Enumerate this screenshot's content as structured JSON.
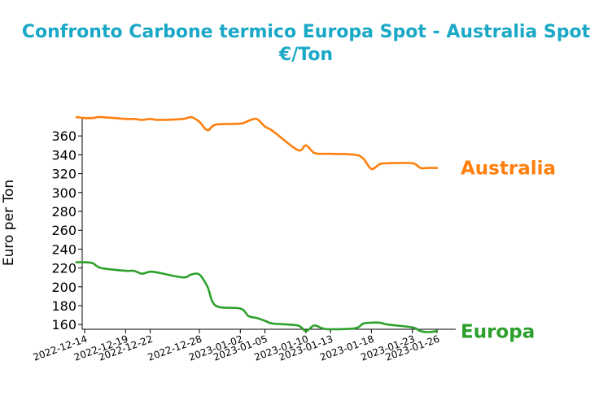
{
  "chart_data": {
    "type": "line",
    "title": [
      "Confronto Carbone termico Europa Spot - Australia Spot",
      "€/Ton"
    ],
    "xlabel": "",
    "ylabel": "Euro per Ton",
    "ylim": [
      155,
      380
    ],
    "yticks": [
      160,
      180,
      200,
      220,
      240,
      260,
      280,
      300,
      320,
      340,
      360
    ],
    "xlim": [
      "2022-12-14",
      "2023-01-27"
    ],
    "xticks": [
      "2022-12-14",
      "2022-12-19",
      "2022-12-22",
      "2022-12-28",
      "2023-01-02",
      "2023-01-05",
      "2023-01-10",
      "2023-01-13",
      "2023-01-18",
      "2023-01-23",
      "2023-01-26"
    ],
    "grid": false,
    "legend": "inline-right",
    "series": [
      {
        "name": "Australia",
        "color": "#ff7f0e",
        "points": [
          [
            "2022-12-13",
            380
          ],
          [
            "2022-12-14",
            379
          ],
          [
            "2022-12-15",
            379
          ],
          [
            "2022-12-16",
            380
          ],
          [
            "2022-12-19",
            378
          ],
          [
            "2022-12-20",
            378
          ],
          [
            "2022-12-21",
            377
          ],
          [
            "2022-12-22",
            378
          ],
          [
            "2022-12-23",
            377
          ],
          [
            "2022-12-26",
            378
          ],
          [
            "2022-12-27",
            380
          ],
          [
            "2022-12-28",
            375
          ],
          [
            "2022-12-29",
            366
          ],
          [
            "2022-12-30",
            372
          ],
          [
            "2023-01-02",
            373
          ],
          [
            "2023-01-03",
            376
          ],
          [
            "2023-01-04",
            378
          ],
          [
            "2023-01-05",
            370
          ],
          [
            "2023-01-06",
            365
          ],
          [
            "2023-01-09",
            345
          ],
          [
            "2023-01-10",
            350
          ],
          [
            "2023-01-11",
            342
          ],
          [
            "2023-01-12",
            341
          ],
          [
            "2023-01-13",
            341
          ],
          [
            "2023-01-16",
            340
          ],
          [
            "2023-01-17",
            336
          ],
          [
            "2023-01-18",
            325
          ],
          [
            "2023-01-19",
            330
          ],
          [
            "2023-01-20",
            331
          ],
          [
            "2023-01-23",
            331
          ],
          [
            "2023-01-24",
            326
          ],
          [
            "2023-01-25",
            326
          ],
          [
            "2023-01-26",
            326
          ]
        ]
      },
      {
        "name": "Europa",
        "color": "#2ca02c",
        "points": [
          [
            "2022-12-13",
            226
          ],
          [
            "2022-12-14",
            226
          ],
          [
            "2022-12-15",
            225
          ],
          [
            "2022-12-16",
            220
          ],
          [
            "2022-12-19",
            217
          ],
          [
            "2022-12-20",
            217
          ],
          [
            "2022-12-21",
            214
          ],
          [
            "2022-12-22",
            216
          ],
          [
            "2022-12-23",
            215
          ],
          [
            "2022-12-26",
            210
          ],
          [
            "2022-12-27",
            213
          ],
          [
            "2022-12-28",
            213
          ],
          [
            "2022-12-29",
            200
          ],
          [
            "2022-12-30",
            180
          ],
          [
            "2023-01-02",
            177
          ],
          [
            "2023-01-03",
            169
          ],
          [
            "2023-01-04",
            167
          ],
          [
            "2023-01-05",
            164
          ],
          [
            "2023-01-06",
            161
          ],
          [
            "2023-01-09",
            159
          ],
          [
            "2023-01-10",
            153
          ],
          [
            "2023-01-11",
            159
          ],
          [
            "2023-01-12",
            156
          ],
          [
            "2023-01-13",
            155
          ],
          [
            "2023-01-16",
            156
          ],
          [
            "2023-01-17",
            161
          ],
          [
            "2023-01-18",
            162
          ],
          [
            "2023-01-19",
            162
          ],
          [
            "2023-01-20",
            160
          ],
          [
            "2023-01-23",
            157
          ],
          [
            "2023-01-24",
            153
          ],
          [
            "2023-01-25",
            152
          ],
          [
            "2023-01-26",
            153
          ]
        ]
      }
    ]
  }
}
